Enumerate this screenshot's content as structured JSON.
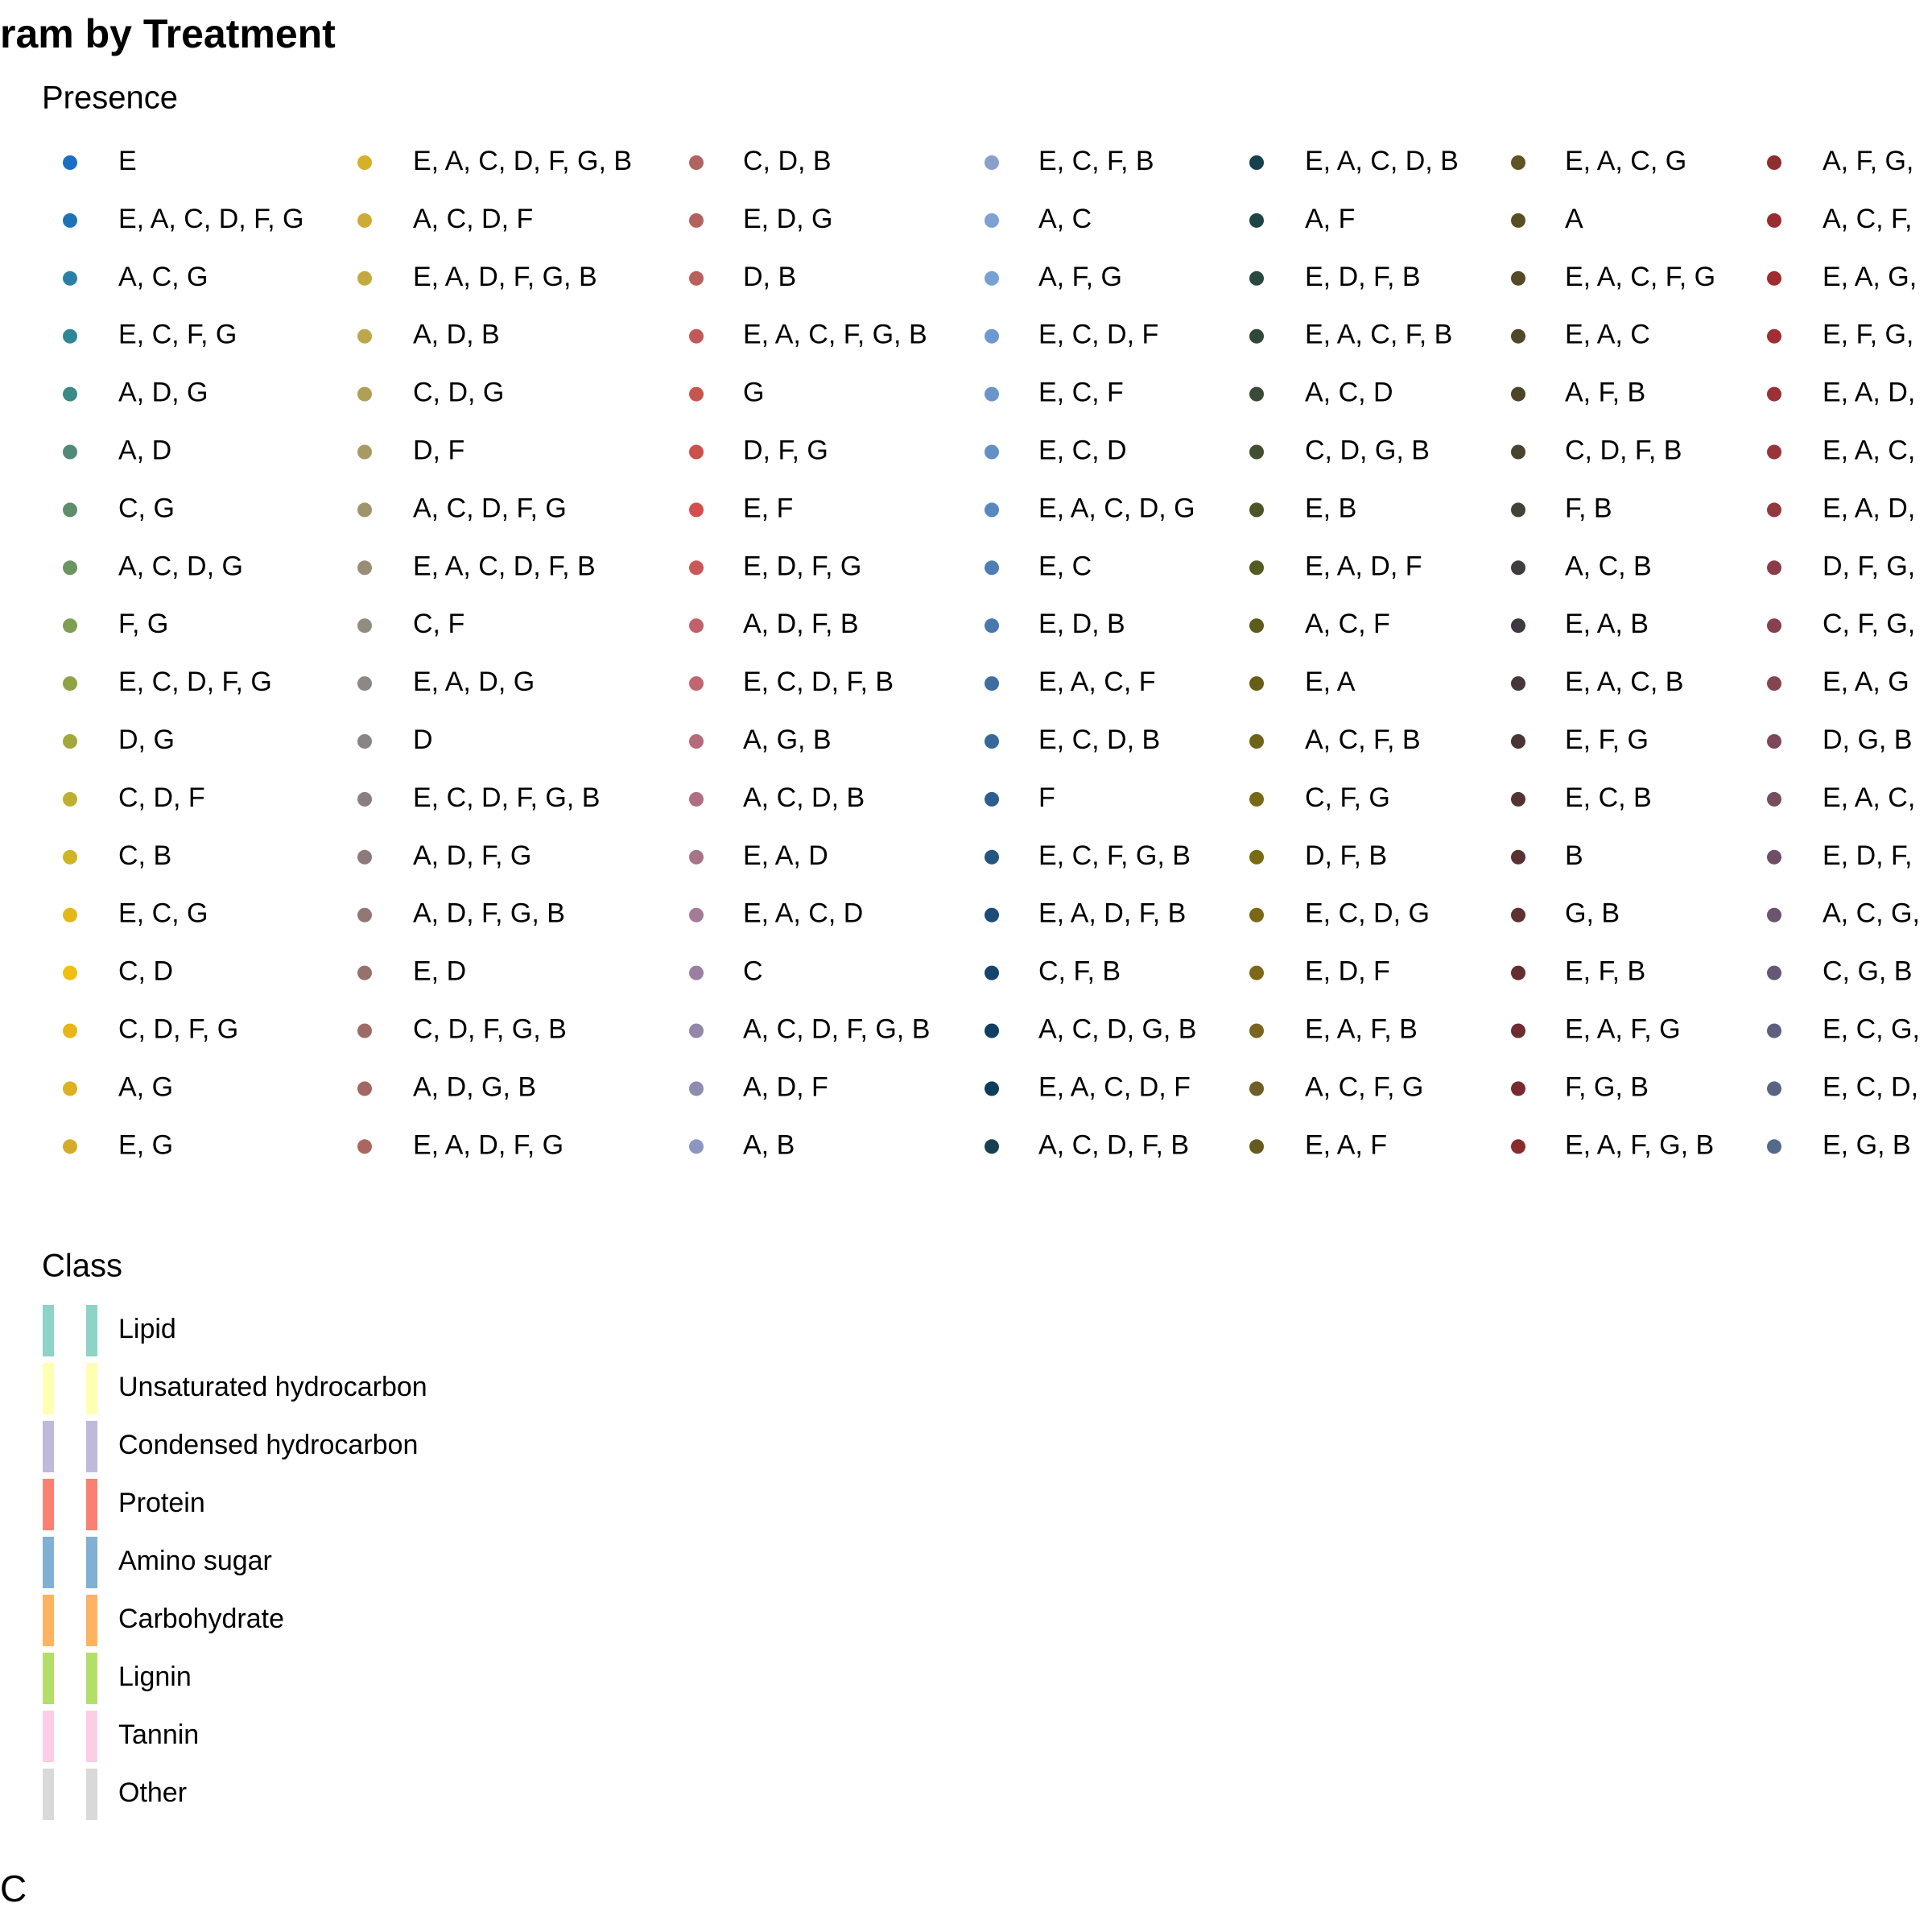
{
  "title": "ram by Treatment",
  "legends": [
    {
      "title": "Presence",
      "entries": [
        {
          "label": "E",
          "color": "#1a6fc4"
        },
        {
          "label": "E, A, C, D, F, G",
          "color": "#1c74b4"
        },
        {
          "label": "A, C, G",
          "color": "#2a7fa6"
        },
        {
          "label": "E, C, F, G",
          "color": "#318696"
        },
        {
          "label": "A, D, G",
          "color": "#3b8a88"
        },
        {
          "label": "A, D",
          "color": "#4f8a7a"
        },
        {
          "label": "C, G",
          "color": "#5e8e6c"
        },
        {
          "label": "A, C, D, G",
          "color": "#6a9460"
        },
        {
          "label": "F, G",
          "color": "#7e9e52"
        },
        {
          "label": "E, C, D, F, G",
          "color": "#8ea444"
        },
        {
          "label": "D, G",
          "color": "#a3a83a"
        },
        {
          "label": "C, D, F",
          "color": "#bdb030"
        },
        {
          "label": "C, B",
          "color": "#cfb424"
        },
        {
          "label": "E, C, G",
          "color": "#e2b818"
        },
        {
          "label": "C, D",
          "color": "#f0be10"
        },
        {
          "label": "C, D, F, G",
          "color": "#e8b416"
        },
        {
          "label": "A, G",
          "color": "#ddb020"
        },
        {
          "label": "E, G",
          "color": "#d4ac28"
        },
        {
          "label": "E, A, C, D, F, G, B",
          "color": "#d6b028"
        },
        {
          "label": "A, C, D, F",
          "color": "#ccac34"
        },
        {
          "label": "E, A, D, F, G, B",
          "color": "#c4aa3e"
        },
        {
          "label": "A, D, B",
          "color": "#bca84a"
        },
        {
          "label": "C, D, G",
          "color": "#b0a056"
        },
        {
          "label": "D, F",
          "color": "#a89a62"
        },
        {
          "label": "A, C, D, F, G",
          "color": "#a0946c"
        },
        {
          "label": "E, A, C, D, F, B",
          "color": "#988e76"
        },
        {
          "label": "C, F",
          "color": "#928c80"
        },
        {
          "label": "E, A, D, G",
          "color": "#8c8886"
        },
        {
          "label": "D",
          "color": "#888488"
        },
        {
          "label": "E, C, D, F, G, B",
          "color": "#8a7e82"
        },
        {
          "label": "A, D, F, G",
          "color": "#8c7a7c"
        },
        {
          "label": "A, D, F, G, B",
          "color": "#927874"
        },
        {
          "label": "E, D",
          "color": "#96726c"
        },
        {
          "label": "C, D, F, G, B",
          "color": "#9e6c66"
        },
        {
          "label": "A, D, G, B",
          "color": "#a46864"
        },
        {
          "label": "E, A, D, F, G",
          "color": "#aa6660"
        },
        {
          "label": "C, D, B",
          "color": "#b06462"
        },
        {
          "label": "E, D, G",
          "color": "#b46260"
        },
        {
          "label": "D, B",
          "color": "#b8605c"
        },
        {
          "label": "E, A, C, F, G, B",
          "color": "#c05a58"
        },
        {
          "label": "G",
          "color": "#c65650"
        },
        {
          "label": "D, F, G",
          "color": "#cc504c"
        },
        {
          "label": "E, F",
          "color": "#d44e4e"
        },
        {
          "label": "E, D, F, G",
          "color": "#ca5858"
        },
        {
          "label": "A, D, F, B",
          "color": "#c4606a"
        },
        {
          "label": "E, C, D, F, B",
          "color": "#c0666e"
        },
        {
          "label": "A, G, B",
          "color": "#b66a7a"
        },
        {
          "label": "A, C, D, B",
          "color": "#b06e82"
        },
        {
          "label": "E, A, D",
          "color": "#a8748a"
        },
        {
          "label": "E, A, C, D",
          "color": "#a27c96"
        },
        {
          "label": "C",
          "color": "#9a80a0"
        },
        {
          "label": "A, C, D, F, G, B",
          "color": "#9486a8"
        },
        {
          "label": "A, D, F",
          "color": "#8e8cb0"
        },
        {
          "label": "A, B",
          "color": "#8c96c0"
        },
        {
          "label": "E, C, F, B",
          "color": "#8aa0cc"
        },
        {
          "label": "A, C",
          "color": "#7ea0d4"
        },
        {
          "label": "A, F, G",
          "color": "#78a0d4"
        },
        {
          "label": "E, C, D, F",
          "color": "#6e98d2"
        },
        {
          "label": "E, C, F",
          "color": "#6a94cc"
        },
        {
          "label": "E, C, D",
          "color": "#6290c6"
        },
        {
          "label": "E, A, C, D, G",
          "color": "#5888c0"
        },
        {
          "label": "E, C",
          "color": "#4e7eb6"
        },
        {
          "label": "E, D, B",
          "color": "#4878ac"
        },
        {
          "label": "E, A, C, F",
          "color": "#3e6ea0"
        },
        {
          "label": "E, C, D, B",
          "color": "#366898"
        },
        {
          "label": "F",
          "color": "#2e5e90"
        },
        {
          "label": "E, C, F, G, B",
          "color": "#245684"
        },
        {
          "label": "E, A, D, F, B",
          "color": "#1c4c78"
        },
        {
          "label": "C, F, B",
          "color": "#16446e"
        },
        {
          "label": "A, C, D, G, B",
          "color": "#103e64"
        },
        {
          "label": "E, A, C, D, F",
          "color": "#103c5c"
        },
        {
          "label": "A, C, D, F, B",
          "color": "#164050"
        },
        {
          "label": "E, A, C, D, B",
          "color": "#17404e"
        },
        {
          "label": "A, F",
          "color": "#1f4446"
        },
        {
          "label": "E, D, F, B",
          "color": "#284840"
        },
        {
          "label": "E, A, C, F, B",
          "color": "#30483c"
        },
        {
          "label": "A, C, D",
          "color": "#3a4a36"
        },
        {
          "label": "C, D, G, B",
          "color": "#424e30"
        },
        {
          "label": "E, B",
          "color": "#4c5428"
        },
        {
          "label": "E, A, D, F",
          "color": "#545a22"
        },
        {
          "label": "A, C, F",
          "color": "#5e5c1c"
        },
        {
          "label": "E, A",
          "color": "#665e18"
        },
        {
          "label": "A, C, F, B",
          "color": "#6e6418"
        },
        {
          "label": "C, F, G",
          "color": "#766a14"
        },
        {
          "label": "D, F, B",
          "color": "#7a6a12"
        },
        {
          "label": "E, C, D, G",
          "color": "#7a6816"
        },
        {
          "label": "E, D, F",
          "color": "#7c6818"
        },
        {
          "label": "E, A, F, B",
          "color": "#7a6420"
        },
        {
          "label": "A, C, F, G",
          "color": "#6e5e28"
        },
        {
          "label": "E, A, F",
          "color": "#665a20"
        },
        {
          "label": "E, A, C, G",
          "color": "#5e5424"
        },
        {
          "label": "A",
          "color": "#584e24"
        },
        {
          "label": "E, A, C, F, G",
          "color": "#544a28"
        },
        {
          "label": "E, A, C",
          "color": "#504828"
        },
        {
          "label": "A, F, B",
          "color": "#4c4628"
        },
        {
          "label": "C, D, F, B",
          "color": "#484430"
        },
        {
          "label": "F, B",
          "color": "#444238"
        },
        {
          "label": "A, C, B",
          "color": "#403e3c"
        },
        {
          "label": "E, A, B",
          "color": "#403840"
        },
        {
          "label": "E, A, C, B",
          "color": "#463838"
        },
        {
          "label": "E, F, G",
          "color": "#4a3434"
        },
        {
          "label": "E, C, B",
          "color": "#523434"
        },
        {
          "label": "B",
          "color": "#583232"
        },
        {
          "label": "G, B",
          "color": "#5e3030"
        },
        {
          "label": "E, F, B",
          "color": "#642e30"
        },
        {
          "label": "E, A, F, G",
          "color": "#6c2c30"
        },
        {
          "label": "F, G, B",
          "color": "#782a2e"
        },
        {
          "label": "E, A, F, G, B",
          "color": "#8a2c2e"
        },
        {
          "label": "A, F, G,",
          "color": "#8e2e30"
        },
        {
          "label": "A, C, F,",
          "color": "#9a2c30"
        },
        {
          "label": "E, A, G,",
          "color": "#a02c30"
        },
        {
          "label": "E, F, G,",
          "color": "#a02e34"
        },
        {
          "label": "E, A, D,",
          "color": "#9c3038"
        },
        {
          "label": "E, A, C,",
          "color": "#98343c"
        },
        {
          "label": "E, A, D,",
          "color": "#943840"
        },
        {
          "label": "D, F, G,",
          "color": "#8c3c48"
        },
        {
          "label": "C, F, G,",
          "color": "#88404e"
        },
        {
          "label": "E, A, G",
          "color": "#844452"
        },
        {
          "label": "D, G, B",
          "color": "#7c4858"
        },
        {
          "label": "E, A, C,",
          "color": "#764c60"
        },
        {
          "label": "E, D, F,",
          "color": "#704e66"
        },
        {
          "label": "A, C, G,",
          "color": "#6a546e"
        },
        {
          "label": "C, G, B",
          "color": "#645876"
        },
        {
          "label": "E, C, G,",
          "color": "#5e5e7e"
        },
        {
          "label": "E, C, D,",
          "color": "#586484"
        },
        {
          "label": "E, G, B",
          "color": "#546a8c"
        }
      ]
    },
    {
      "title": "Class",
      "entries": [
        {
          "label": "Lipid",
          "color": "#8dd3c7"
        },
        {
          "label": "Unsaturated hydrocarbon",
          "color": "#ffffb3"
        },
        {
          "label": "Condensed hydrocarbon",
          "color": "#bebada"
        },
        {
          "label": "Protein",
          "color": "#fb8072"
        },
        {
          "label": "Amino sugar",
          "color": "#80b1d3"
        },
        {
          "label": "Carbohydrate",
          "color": "#fdb462"
        },
        {
          "label": "Lignin",
          "color": "#b3de69"
        },
        {
          "label": "Tannin",
          "color": "#fccde5"
        },
        {
          "label": "Other",
          "color": "#d9d9d9"
        }
      ]
    }
  ],
  "axis_fragment": "C"
}
